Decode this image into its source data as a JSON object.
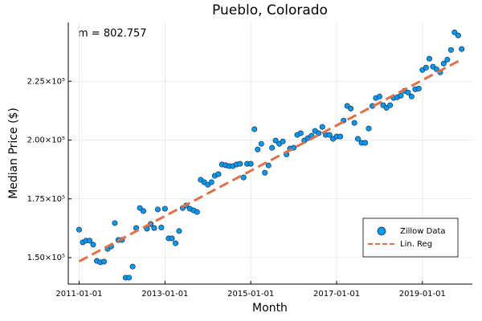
{
  "chart_data": {
    "type": "scatter",
    "title": "Pueblo, Colorado",
    "x_label": "Month",
    "y_label": "Median Price ($)",
    "annotation": "m = 802.757",
    "grid": true,
    "legend": "bottom-right",
    "xlim": [
      "2010-10-01",
      "2020-03-01"
    ],
    "xticks": [
      "2011-01-01",
      "2013-01-01",
      "2015-01-01",
      "2017-01-01",
      "2019-01-01"
    ],
    "ylim": [
      138750,
      250000
    ],
    "yticks": [
      {
        "value": 150000,
        "label": "1.50×10⁵"
      },
      {
        "value": 175000,
        "label": "1.75×10⁵"
      },
      {
        "value": 200000,
        "label": "2.00×10⁵"
      },
      {
        "value": 225000,
        "label": "2.25×10⁵"
      }
    ],
    "series": [
      {
        "name": "Zillow Data",
        "color": "#009afa",
        "x": [
          "2011-01-01",
          "2011-02-01",
          "2011-03-01",
          "2011-04-01",
          "2011-05-01",
          "2011-06-01",
          "2011-07-01",
          "2011-08-01",
          "2011-09-01",
          "2011-10-01",
          "2011-11-01",
          "2011-12-01",
          "2012-01-01",
          "2012-02-01",
          "2012-03-01",
          "2012-04-01",
          "2012-05-01",
          "2012-06-01",
          "2012-07-01",
          "2012-08-01",
          "2012-09-01",
          "2012-10-01",
          "2012-11-01",
          "2012-12-01",
          "2013-01-01",
          "2013-02-01",
          "2013-03-01",
          "2013-04-01",
          "2013-05-01",
          "2013-06-01",
          "2013-07-01",
          "2013-08-01",
          "2013-09-01",
          "2013-10-01",
          "2013-11-01",
          "2013-12-01",
          "2014-01-01",
          "2014-02-01",
          "2014-03-01",
          "2014-04-01",
          "2014-05-01",
          "2014-06-01",
          "2014-07-01",
          "2014-08-01",
          "2014-09-01",
          "2014-10-01",
          "2014-11-01",
          "2014-12-01",
          "2015-01-01",
          "2015-02-01",
          "2015-03-01",
          "2015-04-01",
          "2015-05-01",
          "2015-06-01",
          "2015-07-01",
          "2015-08-01",
          "2015-09-01",
          "2015-10-01",
          "2015-11-01",
          "2015-12-01",
          "2016-01-01",
          "2016-02-01",
          "2016-03-01",
          "2016-04-01",
          "2016-05-01",
          "2016-06-01",
          "2016-07-01",
          "2016-08-01",
          "2016-09-01",
          "2016-10-01",
          "2016-11-01",
          "2016-12-01",
          "2017-01-01",
          "2017-02-01",
          "2017-03-01",
          "2017-04-01",
          "2017-05-01",
          "2017-06-01",
          "2017-07-01",
          "2017-08-01",
          "2017-09-01",
          "2017-10-01",
          "2017-11-01",
          "2017-12-01",
          "2018-01-01",
          "2018-02-01",
          "2018-03-01",
          "2018-04-01",
          "2018-05-01",
          "2018-06-01",
          "2018-07-01",
          "2018-08-01",
          "2018-09-01",
          "2018-10-01",
          "2018-11-01",
          "2018-12-01",
          "2019-01-01",
          "2019-02-01",
          "2019-03-01",
          "2019-04-01",
          "2019-05-01",
          "2019-06-01",
          "2019-07-01",
          "2019-08-01",
          "2019-09-01",
          "2019-10-01",
          "2019-11-01",
          "2019-12-01"
        ],
        "values": [
          161900,
          156500,
          157200,
          157200,
          155500,
          148600,
          148000,
          148300,
          153700,
          154800,
          164700,
          157500,
          157500,
          141500,
          141500,
          146200,
          162600,
          171100,
          169800,
          162300,
          164300,
          162600,
          170500,
          162800,
          170800,
          158200,
          158200,
          156100,
          161300,
          171100,
          172200,
          170800,
          170100,
          169400,
          183100,
          182100,
          181000,
          182100,
          184800,
          185500,
          189600,
          189300,
          188900,
          188900,
          189600,
          189900,
          184100,
          189900,
          189900,
          204600,
          196000,
          198400,
          186100,
          189200,
          196700,
          199800,
          198400,
          199400,
          193900,
          196400,
          196700,
          202200,
          202900,
          199800,
          200800,
          201800,
          203900,
          202900,
          205600,
          202200,
          202200,
          200500,
          201500,
          201500,
          208300,
          214500,
          213400,
          207300,
          200500,
          198800,
          198800,
          204900,
          214500,
          217900,
          218500,
          214800,
          213700,
          214800,
          217900,
          218200,
          218900,
          220900,
          220200,
          218500,
          221600,
          221900,
          229800,
          230800,
          234600,
          231200,
          230100,
          228800,
          232500,
          234200,
          238300,
          245800,
          244500,
          238700
        ]
      },
      {
        "name": "Lin. Reg",
        "color": "#e26f46",
        "style": "dashed",
        "x": [
          "2011-01-01",
          "2019-12-01"
        ],
        "values": [
          148400,
          234300
        ]
      }
    ]
  }
}
